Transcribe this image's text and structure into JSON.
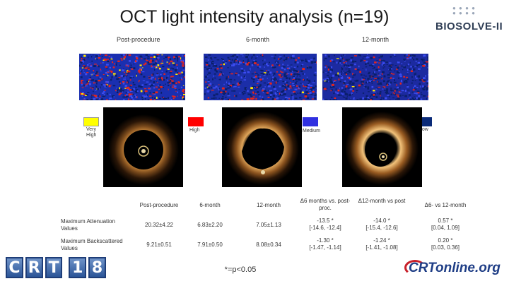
{
  "slide": {
    "title": "OCT light intensity analysis (n=19)",
    "logo_text": "BIOSOLVE-II",
    "footer_left_logo": [
      "C",
      "R",
      "T",
      "1",
      "8"
    ],
    "footer_right_logo": "CRTonline.org",
    "footnote": "*=p<0.05"
  },
  "columns": {
    "post": "Post-procedure",
    "six": "6-month",
    "twelve": "12-month"
  },
  "legend": [
    {
      "label": "Very\nHigh",
      "color": "#ffff00"
    },
    {
      "label": "High",
      "color": "#ff0000"
    },
    {
      "label": "Medium",
      "color": "#3030e0"
    },
    {
      "label": "Low",
      "color": "#0a2a78"
    }
  ],
  "table": {
    "headers": [
      "Post-procedure",
      "6-month",
      "12-month",
      "Δ6 months vs. post-proc.",
      "Δ12-month vs post",
      "Δ6- vs 12-month"
    ],
    "rows": [
      {
        "label": "Maximum Attenuation Values",
        "cells": [
          "20.32±4.22",
          "6.83±2.20",
          "7.05±1.13",
          "-13.5 *\n[-14.6, -12.4]",
          "-14.0 *\n[-15.4, -12.6]",
          "0.57 *\n[0.04, 1.09]"
        ]
      },
      {
        "label": "Maximum Backscattered Values",
        "cells": [
          "9.21±0.51",
          "7.91±0.50",
          "8.08±0.34",
          "-1.30 *\n[-1.47, -1.14]",
          "-1.24 *\n[-1.41, -1.08]",
          "0.20 *\n[0.03, 0.36]"
        ]
      }
    ]
  }
}
